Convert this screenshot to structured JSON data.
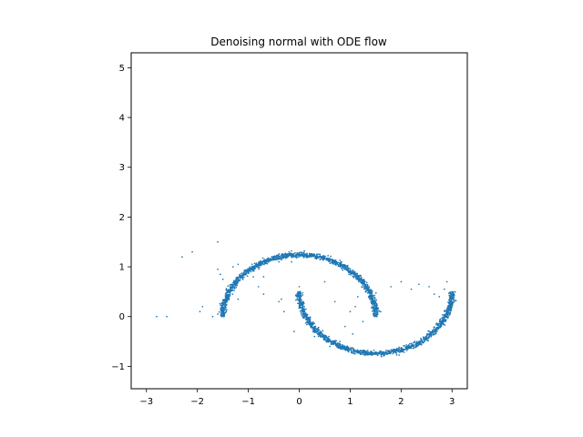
{
  "chart_data": {
    "type": "scatter",
    "title": "Denoising normal with ODE flow",
    "xlabel": "",
    "ylabel": "",
    "xlim": [
      -3.3,
      3.3
    ],
    "ylim": [
      -1.45,
      5.3
    ],
    "xticks": [
      -3,
      -2,
      -1,
      0,
      1,
      2,
      3
    ],
    "xtick_labels": [
      "−3",
      "−2",
      "−1",
      "0",
      "1",
      "2",
      "3"
    ],
    "yticks": [
      -1,
      0,
      1,
      2,
      3,
      4,
      5
    ],
    "ytick_labels": [
      "−1",
      "0",
      "1",
      "2",
      "3",
      "4",
      "5"
    ],
    "grid": false,
    "legend": "none",
    "series": [
      {
        "color": "#1f77b4",
        "marker_size": 1,
        "description_shape": "two interleaving moons",
        "upper_moon": {
          "center": [
            0.0,
            0.0
          ],
          "radius": 2.0,
          "angle_range_deg": [
            0,
            180
          ]
        },
        "lower_moon": {
          "center": [
            1.0,
            0.5
          ],
          "radius": 2.0,
          "angle_range_deg": [
            180,
            360
          ]
        },
        "point_count": 2600,
        "outliers": [
          [
            -2.3,
            1.2
          ],
          [
            -2.1,
            1.3
          ],
          [
            -1.6,
            1.5
          ],
          [
            -1.9,
            0.2
          ],
          [
            -1.95,
            0.1
          ],
          [
            -2.6,
            0.0
          ],
          [
            -2.8,
            0.0
          ],
          [
            -1.7,
            0.0
          ],
          [
            -1.6,
            0.05
          ],
          [
            -1.6,
            0.95
          ],
          [
            -1.55,
            0.85
          ],
          [
            -1.5,
            0.75
          ],
          [
            -1.2,
            0.35
          ],
          [
            -1.3,
            1.0
          ],
          [
            -1.2,
            1.05
          ],
          [
            -0.9,
            1.0
          ],
          [
            -0.9,
            0.8
          ],
          [
            -1.05,
            0.9
          ],
          [
            -0.8,
            0.6
          ],
          [
            -0.7,
            0.8
          ],
          [
            -0.4,
            1.1
          ],
          [
            -0.2,
            1.3
          ],
          [
            -0.15,
            1.1
          ],
          [
            0.0,
            0.6
          ],
          [
            0.1,
            0.2
          ],
          [
            0.5,
            0.7
          ],
          [
            0.7,
            0.3
          ],
          [
            -0.35,
            0.35
          ],
          [
            -0.4,
            0.3
          ],
          [
            -0.3,
            0.1
          ],
          [
            -0.1,
            -0.3
          ],
          [
            0.3,
            -0.4
          ],
          [
            0.6,
            -0.6
          ],
          [
            0.8,
            -0.5
          ],
          [
            0.9,
            -0.2
          ],
          [
            1.1,
            0.2
          ],
          [
            1.15,
            0.4
          ],
          [
            1.25,
            -0.1
          ],
          [
            1.3,
            0.5
          ],
          [
            1.5,
            0.3
          ],
          [
            1.6,
            0.1
          ],
          [
            1.8,
            0.6
          ],
          [
            2.0,
            0.7
          ],
          [
            2.2,
            0.55
          ],
          [
            2.35,
            0.65
          ],
          [
            2.55,
            0.6
          ],
          [
            2.65,
            0.45
          ],
          [
            2.75,
            0.4
          ],
          [
            2.85,
            0.55
          ],
          [
            2.9,
            0.7
          ],
          [
            -1.4,
            0.5
          ],
          [
            -1.45,
            0.2
          ],
          [
            1.0,
            0.1
          ],
          [
            1.05,
            -0.35
          ],
          [
            -0.5,
            1.2
          ],
          [
            -0.7,
            0.45
          ]
        ]
      }
    ]
  }
}
